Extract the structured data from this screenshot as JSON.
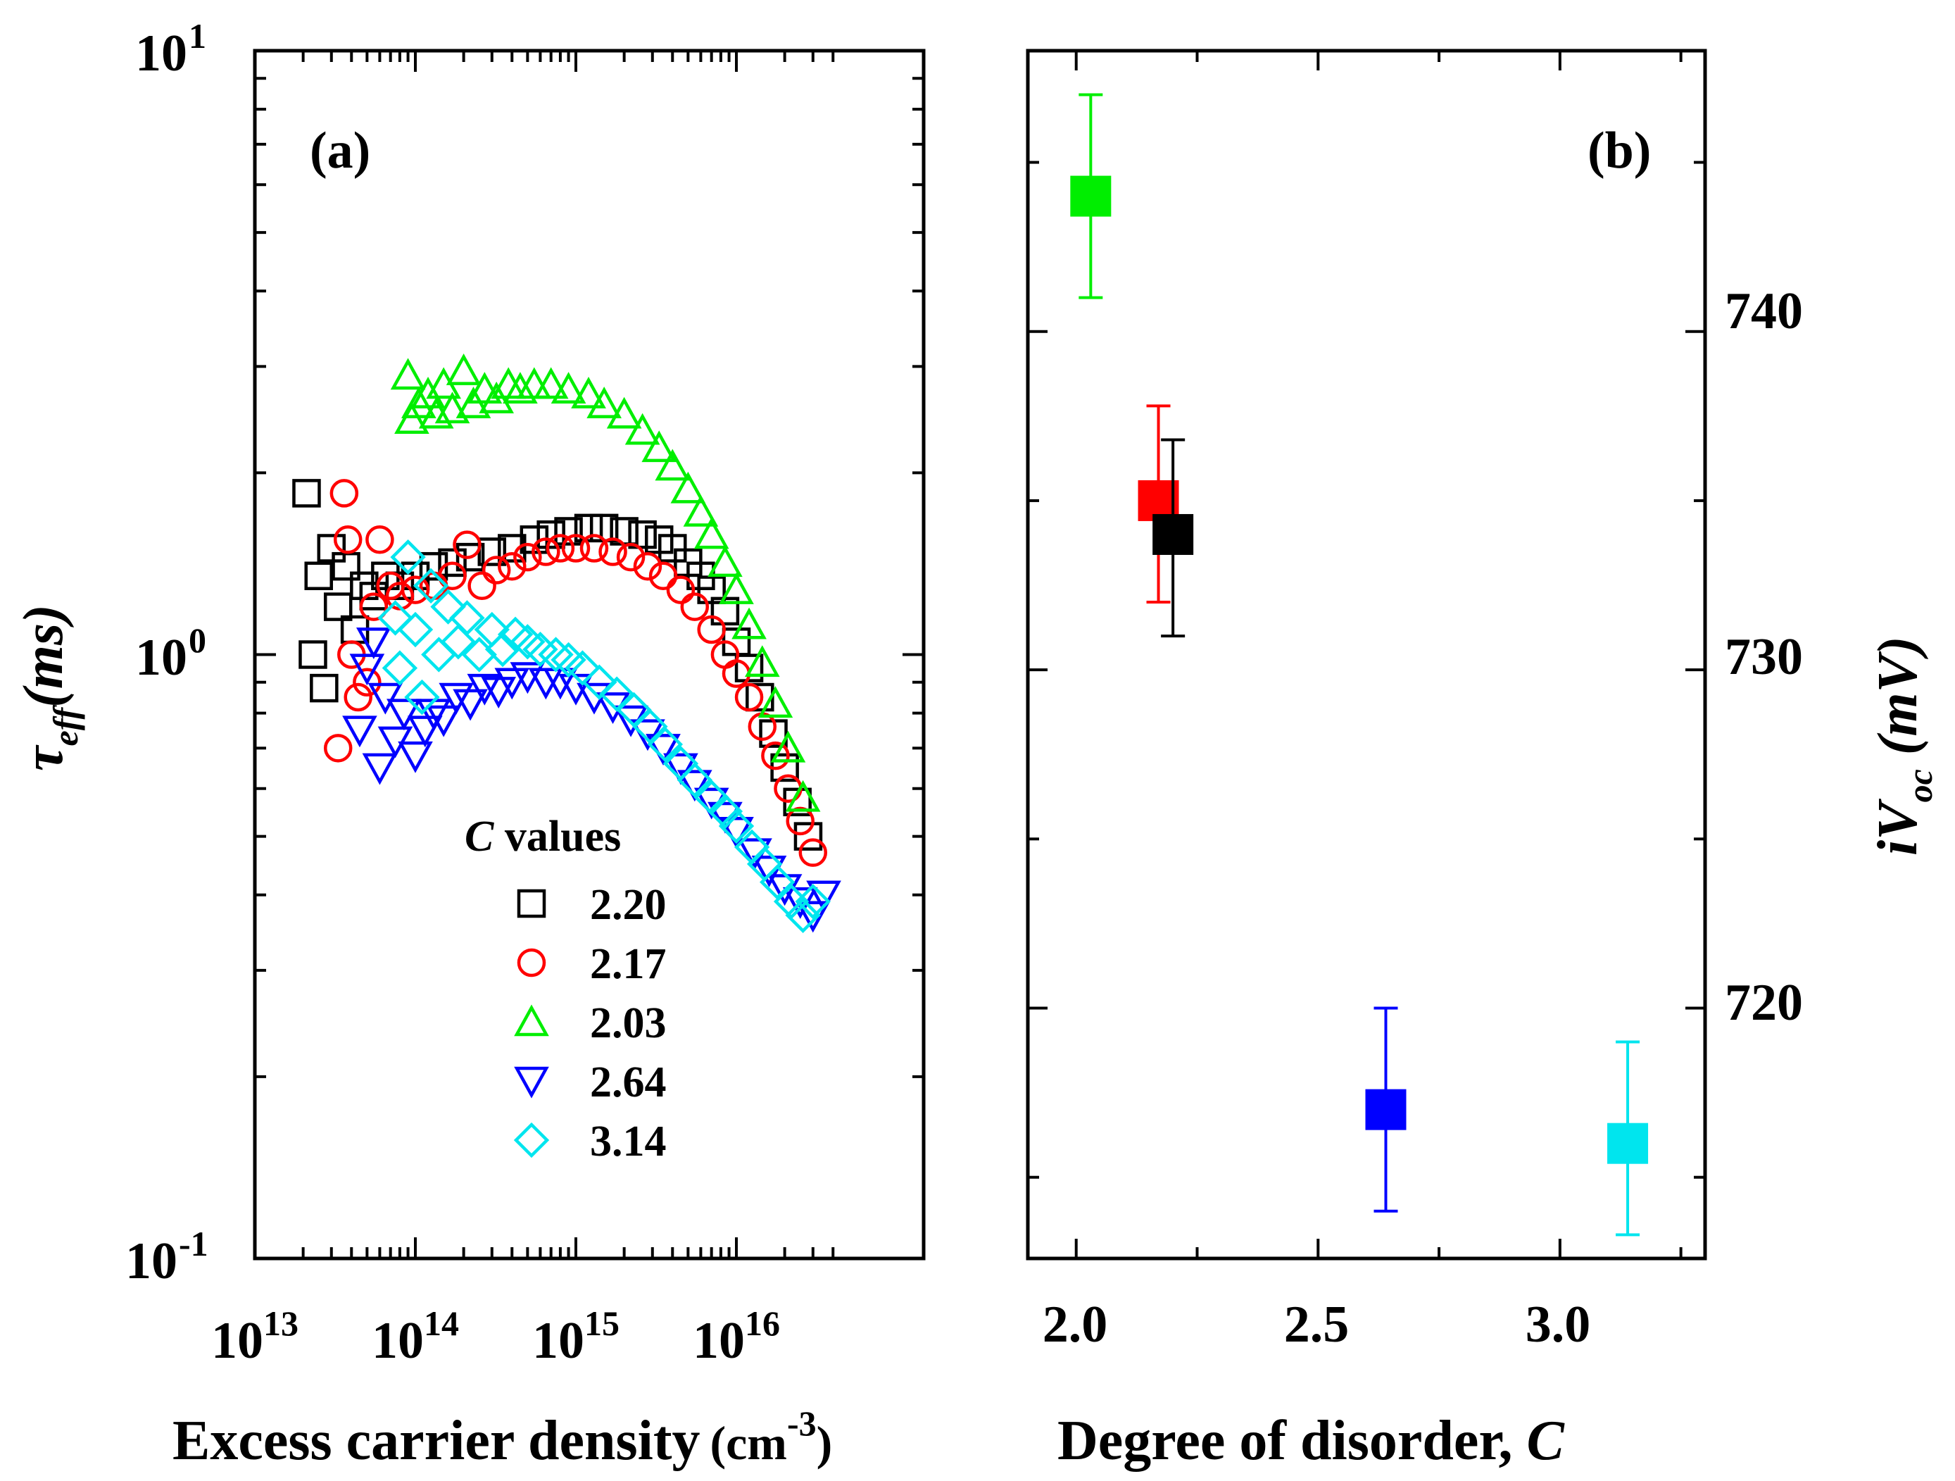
{
  "chart_data": [
    {
      "panel": "(a)",
      "type": "scatter",
      "xscale": "log",
      "yscale": "log",
      "xlabel": "Excess carrier density (cm-3)",
      "xlabel_main": "Excess carrier density",
      "xlabel_unit_base": "(cm",
      "xlabel_unit_exp": "-3",
      "xlabel_unit_close": ")",
      "ylabel": "τeff(ms)",
      "ylabel_sym": "τ",
      "ylabel_sub": "eff",
      "ylabel_unit": "(ms)",
      "xlim": [
        10000000000000.0,
        4.5e+16
      ],
      "ylim": [
        0.1,
        10
      ],
      "xticks": [
        {
          "value": 10000000000000.0,
          "base": "10",
          "exp": "13"
        },
        {
          "value": 100000000000000.0,
          "base": "10",
          "exp": "14"
        },
        {
          "value": 1000000000000000.0,
          "base": "10",
          "exp": "15"
        },
        {
          "value": 1e+16,
          "base": "10",
          "exp": "16"
        }
      ],
      "yticks": [
        {
          "value": 0.1,
          "base": "10",
          "exp": "-1"
        },
        {
          "value": 1,
          "base": "10",
          "exp": "0"
        },
        {
          "value": 10,
          "base": "10",
          "exp": "1"
        }
      ],
      "legend": {
        "title_italic": "C",
        "title_rest": " values",
        "placement": "lower-left"
      },
      "series": [
        {
          "name": "2.20",
          "marker": "square",
          "color": "#000000",
          "points": [
            [
              21000000000000.0,
              1.85
            ],
            [
              23000000000000.0,
              1.0
            ],
            [
              25000000000000.0,
              1.35
            ],
            [
              27000000000000.0,
              0.88
            ],
            [
              30000000000000.0,
              1.5
            ],
            [
              33000000000000.0,
              1.2
            ],
            [
              37000000000000.0,
              1.4
            ],
            [
              42000000000000.0,
              1.1
            ],
            [
              48000000000000.0,
              1.3
            ],
            [
              55000000000000.0,
              1.25
            ],
            [
              65000000000000.0,
              1.35
            ],
            [
              80000000000000.0,
              1.3
            ],
            [
              100000000000000.0,
              1.35
            ],
            [
              130000000000000.0,
              1.4
            ],
            [
              170000000000000.0,
              1.42
            ],
            [
              220000000000000.0,
              1.45
            ],
            [
              300000000000000.0,
              1.48
            ],
            [
              400000000000000.0,
              1.5
            ],
            [
              550000000000000.0,
              1.55
            ],
            [
              700000000000000.0,
              1.58
            ],
            [
              900000000000000.0,
              1.6
            ],
            [
              1200000000000000.0,
              1.62
            ],
            [
              1500000000000000.0,
              1.62
            ],
            [
              2000000000000000.0,
              1.6
            ],
            [
              2600000000000000.0,
              1.58
            ],
            [
              3300000000000000.0,
              1.55
            ],
            [
              4000000000000000.0,
              1.5
            ],
            [
              5000000000000000.0,
              1.42
            ],
            [
              6000000000000000.0,
              1.35
            ],
            [
              7000000000000000.0,
              1.28
            ],
            [
              8500000000000000.0,
              1.18
            ],
            [
              1e+16,
              1.05
            ],
            [
              1.2e+16,
              0.95
            ],
            [
              1.4e+16,
              0.85
            ],
            [
              1.7e+16,
              0.74
            ],
            [
              2e+16,
              0.65
            ],
            [
              2.4e+16,
              0.57
            ],
            [
              2.8e+16,
              0.5
            ]
          ]
        },
        {
          "name": "2.17",
          "marker": "circle",
          "color": "#ff0000",
          "points": [
            [
              33000000000000.0,
              0.7
            ],
            [
              36000000000000.0,
              1.85
            ],
            [
              38000000000000.0,
              1.55
            ],
            [
              40000000000000.0,
              1.0
            ],
            [
              44000000000000.0,
              0.85
            ],
            [
              50000000000000.0,
              0.9
            ],
            [
              55000000000000.0,
              1.2
            ],
            [
              60000000000000.0,
              1.55
            ],
            [
              70000000000000.0,
              1.3
            ],
            [
              80000000000000.0,
              1.25
            ],
            [
              100000000000000.0,
              1.28
            ],
            [
              130000000000000.0,
              1.3
            ],
            [
              170000000000000.0,
              1.35
            ],
            [
              210000000000000.0,
              1.52
            ],
            [
              260000000000000.0,
              1.3
            ],
            [
              320000000000000.0,
              1.38
            ],
            [
              400000000000000.0,
              1.4
            ],
            [
              500000000000000.0,
              1.45
            ],
            [
              650000000000000.0,
              1.48
            ],
            [
              800000000000000.0,
              1.5
            ],
            [
              1000000000000000.0,
              1.5
            ],
            [
              1300000000000000.0,
              1.5
            ],
            [
              1700000000000000.0,
              1.48
            ],
            [
              2200000000000000.0,
              1.45
            ],
            [
              2800000000000000.0,
              1.4
            ],
            [
              3500000000000000.0,
              1.35
            ],
            [
              4500000000000000.0,
              1.28
            ],
            [
              5500000000000000.0,
              1.2
            ],
            [
              7000000000000000.0,
              1.1
            ],
            [
              8500000000000000.0,
              1.0
            ],
            [
              1e+16,
              0.93
            ],
            [
              1.2e+16,
              0.85
            ],
            [
              1.45e+16,
              0.76
            ],
            [
              1.75e+16,
              0.68
            ],
            [
              2.1e+16,
              0.6
            ],
            [
              2.5e+16,
              0.53
            ],
            [
              3e+16,
              0.47
            ]
          ]
        },
        {
          "name": "2.03",
          "marker": "triangle-up",
          "color": "#00ee00",
          "points": [
            [
              90000000000000.0,
              2.9
            ],
            [
              95000000000000.0,
              2.45
            ],
            [
              105000000000000.0,
              2.6
            ],
            [
              120000000000000.0,
              2.7
            ],
            [
              135000000000000.0,
              2.5
            ],
            [
              150000000000000.0,
              2.8
            ],
            [
              170000000000000.0,
              2.55
            ],
            [
              200000000000000.0,
              2.95
            ],
            [
              230000000000000.0,
              2.6
            ],
            [
              270000000000000.0,
              2.75
            ],
            [
              320000000000000.0,
              2.65
            ],
            [
              380000000000000.0,
              2.8
            ],
            [
              450000000000000.0,
              2.75
            ],
            [
              550000000000000.0,
              2.8
            ],
            [
              700000000000000.0,
              2.8
            ],
            [
              900000000000000.0,
              2.75
            ],
            [
              1200000000000000.0,
              2.7
            ],
            [
              1500000000000000.0,
              2.6
            ],
            [
              2000000000000000.0,
              2.5
            ],
            [
              2600000000000000.0,
              2.35
            ],
            [
              3300000000000000.0,
              2.2
            ],
            [
              4000000000000000.0,
              2.05
            ],
            [
              5000000000000000.0,
              1.88
            ],
            [
              6000000000000000.0,
              1.72
            ],
            [
              7000000000000000.0,
              1.58
            ],
            [
              8500000000000000.0,
              1.42
            ],
            [
              1e+16,
              1.28
            ],
            [
              1.2e+16,
              1.12
            ],
            [
              1.45e+16,
              0.97
            ],
            [
              1.75e+16,
              0.83
            ],
            [
              2.1e+16,
              0.7
            ],
            [
              2.6e+16,
              0.58
            ]
          ]
        },
        {
          "name": "2.64",
          "marker": "triangle-down",
          "color": "#0000ff",
          "points": [
            [
              45000000000000.0,
              0.75
            ],
            [
              50000000000000.0,
              0.95
            ],
            [
              55000000000000.0,
              1.05
            ],
            [
              60000000000000.0,
              0.65
            ],
            [
              65000000000000.0,
              0.85
            ],
            [
              75000000000000.0,
              0.72
            ],
            [
              85000000000000.0,
              0.8
            ],
            [
              100000000000000.0,
              0.68
            ],
            [
              115000000000000.0,
              0.75
            ],
            [
              130000000000000.0,
              0.8
            ],
            [
              150000000000000.0,
              0.78
            ],
            [
              180000000000000.0,
              0.85
            ],
            [
              220000000000000.0,
              0.83
            ],
            [
              270000000000000.0,
              0.88
            ],
            [
              330000000000000.0,
              0.87
            ],
            [
              400000000000000.0,
              0.9
            ],
            [
              500000000000000.0,
              0.92
            ],
            [
              650000000000000.0,
              0.9
            ],
            [
              800000000000000.0,
              0.9
            ],
            [
              1000000000000000.0,
              0.88
            ],
            [
              1300000000000000.0,
              0.85
            ],
            [
              1700000000000000.0,
              0.82
            ],
            [
              2200000000000000.0,
              0.78
            ],
            [
              2800000000000000.0,
              0.74
            ],
            [
              3500000000000000.0,
              0.7
            ],
            [
              4500000000000000.0,
              0.65
            ],
            [
              5500000000000000.0,
              0.61
            ],
            [
              7000000000000000.0,
              0.57
            ],
            [
              8500000000000000.0,
              0.54
            ],
            [
              1e+16,
              0.51
            ],
            [
              1.3e+16,
              0.47
            ],
            [
              1.6e+16,
              0.44
            ],
            [
              2e+16,
              0.41
            ],
            [
              2.5e+16,
              0.39
            ],
            [
              3e+16,
              0.37
            ],
            [
              3.5e+16,
              0.4
            ]
          ]
        },
        {
          "name": "3.14",
          "marker": "diamond",
          "color": "#00e5ee",
          "points": [
            [
              75000000000000.0,
              1.15
            ],
            [
              80000000000000.0,
              0.95
            ],
            [
              90000000000000.0,
              1.45
            ],
            [
              100000000000000.0,
              1.1
            ],
            [
              110000000000000.0,
              0.85
            ],
            [
              125000000000000.0,
              1.3
            ],
            [
              140000000000000.0,
              1.0
            ],
            [
              160000000000000.0,
              1.2
            ],
            [
              185000000000000.0,
              1.05
            ],
            [
              210000000000000.0,
              1.15
            ],
            [
              250000000000000.0,
              1.0
            ],
            [
              300000000000000.0,
              1.1
            ],
            [
              350000000000000.0,
              1.02
            ],
            [
              420000000000000.0,
              1.08
            ],
            [
              500000000000000.0,
              1.05
            ],
            [
              600000000000000.0,
              1.02
            ],
            [
              750000000000000.0,
              1.0
            ],
            [
              900000000000000.0,
              0.98
            ],
            [
              1100000000000000.0,
              0.95
            ],
            [
              1400000000000000.0,
              0.9
            ],
            [
              1800000000000000.0,
              0.86
            ],
            [
              2300000000000000.0,
              0.81
            ],
            [
              2900000000000000.0,
              0.76
            ],
            [
              3600000000000000.0,
              0.71
            ],
            [
              4500000000000000.0,
              0.66
            ],
            [
              5500000000000000.0,
              0.62
            ],
            [
              7000000000000000.0,
              0.58
            ],
            [
              8500000000000000.0,
              0.55
            ],
            [
              1e+16,
              0.52
            ],
            [
              1.25e+16,
              0.48
            ],
            [
              1.5e+16,
              0.45
            ],
            [
              1.8e+16,
              0.42
            ],
            [
              2.2e+16,
              0.39
            ],
            [
              2.6e+16,
              0.37
            ],
            [
              3e+16,
              0.39
            ]
          ]
        }
      ]
    },
    {
      "panel": "(b)",
      "type": "scatter",
      "xlabel": "Degree of disorder, C",
      "xlabel_main": "Degree of disorder, ",
      "xlabel_italic": "C",
      "ylabel": "iVoc (mV)",
      "ylabel_main": "iV",
      "ylabel_sub": "oc",
      "ylabel_unit": " (mV)",
      "xlim": [
        1.9,
        3.3
      ],
      "ylim": [
        712.6,
        748.3
      ],
      "xticks": [
        "2.0",
        "2.5",
        "3.0"
      ],
      "yticks": [
        "720",
        "730",
        "740"
      ],
      "points": [
        {
          "x": 2.03,
          "y": 744.0,
          "yerr_low": 741.0,
          "yerr_high": 747.0,
          "color": "#00ee00"
        },
        {
          "x": 2.17,
          "y": 735.0,
          "yerr_low": 732.0,
          "yerr_high": 737.8,
          "color": "#ff0000"
        },
        {
          "x": 2.2,
          "y": 734.0,
          "yerr_low": 731.0,
          "yerr_high": 736.8,
          "color": "#000000"
        },
        {
          "x": 2.64,
          "y": 717.0,
          "yerr_low": 714.0,
          "yerr_high": 720.0,
          "color": "#0000ff"
        },
        {
          "x": 3.14,
          "y": 716.0,
          "yerr_low": 713.3,
          "yerr_high": 719.0,
          "color": "#00e5ee"
        }
      ]
    }
  ]
}
